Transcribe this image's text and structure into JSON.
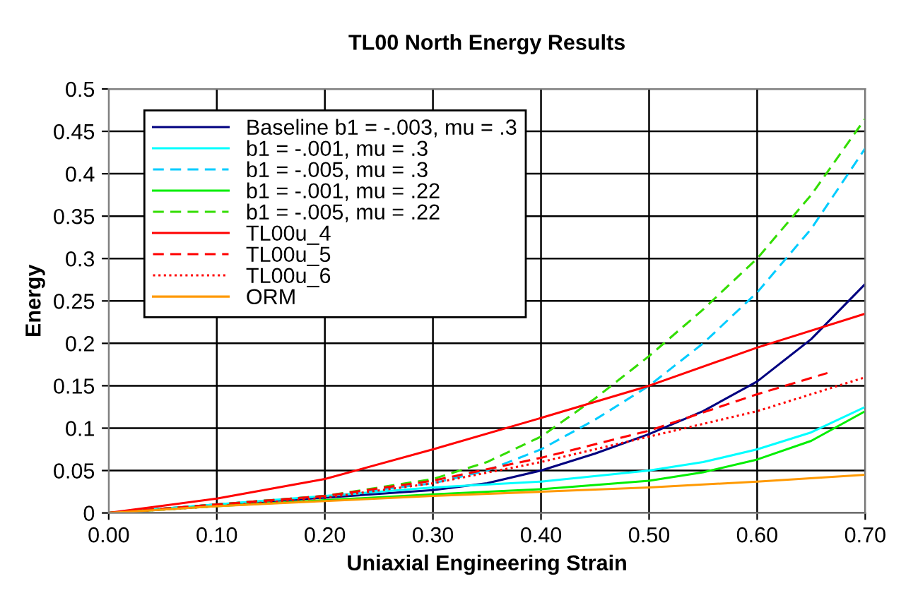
{
  "chart_data": {
    "type": "line",
    "title": "TL00 North Energy Results",
    "xlabel": "Uniaxial Engineering Strain",
    "ylabel": "Energy",
    "xlim": [
      0,
      0.7
    ],
    "ylim": [
      0,
      0.5
    ],
    "xticks": [
      {
        "value": 0,
        "label": "0.00"
      },
      {
        "value": 0.1,
        "label": "0.10"
      },
      {
        "value": 0.2,
        "label": "0.20"
      },
      {
        "value": 0.3,
        "label": "0.30"
      },
      {
        "value": 0.4,
        "label": "0.40"
      },
      {
        "value": 0.5,
        "label": "0.50"
      },
      {
        "value": 0.6,
        "label": "0.60"
      },
      {
        "value": 0.7,
        "label": "0.70"
      }
    ],
    "yticks": [
      0,
      0.05,
      0.1,
      0.15,
      0.2,
      0.25,
      0.3,
      0.35,
      0.4,
      0.45,
      {
        "value": 0.5,
        "label": "0.5"
      }
    ],
    "grid": true,
    "legend": "top left",
    "marker": "none",
    "series": [
      {
        "name": "Baseline b1 = -.003, mu = .3",
        "color": "#000080",
        "line_style": "solid",
        "x": [
          0,
          0.1,
          0.2,
          0.3,
          0.35,
          0.4,
          0.45,
          0.5,
          0.55,
          0.6,
          0.65,
          0.7
        ],
        "values": [
          0,
          0.01,
          0.018,
          0.027,
          0.035,
          0.05,
          0.07,
          0.093,
          0.12,
          0.155,
          0.205,
          0.27
        ]
      },
      {
        "name": "b1 = -.001, mu = .3",
        "color": "#00ffff",
        "line_style": "solid",
        "x": [
          0,
          0.1,
          0.2,
          0.3,
          0.4,
          0.5,
          0.55,
          0.6,
          0.65,
          0.7
        ],
        "values": [
          0,
          0.01,
          0.02,
          0.03,
          0.037,
          0.05,
          0.06,
          0.075,
          0.095,
          0.125
        ]
      },
      {
        "name": "b1 = -.005, mu = .3",
        "color": "#00ccff",
        "line_style": "dashed",
        "x": [
          0,
          0.1,
          0.2,
          0.3,
          0.35,
          0.4,
          0.45,
          0.5,
          0.55,
          0.6,
          0.65,
          0.7
        ],
        "values": [
          0,
          0.01,
          0.02,
          0.035,
          0.05,
          0.075,
          0.11,
          0.15,
          0.2,
          0.26,
          0.335,
          0.43
        ]
      },
      {
        "name": "b1 = -.001, mu = .22",
        "color": "#00ee00",
        "line_style": "solid",
        "x": [
          0,
          0.1,
          0.2,
          0.3,
          0.4,
          0.5,
          0.55,
          0.6,
          0.65,
          0.7
        ],
        "values": [
          0,
          0.008,
          0.015,
          0.022,
          0.028,
          0.038,
          0.048,
          0.063,
          0.085,
          0.12
        ]
      },
      {
        "name": "b1 = -.005, mu = .22",
        "color": "#33dd00",
        "line_style": "dashed",
        "x": [
          0,
          0.1,
          0.2,
          0.3,
          0.35,
          0.4,
          0.45,
          0.5,
          0.55,
          0.6,
          0.65,
          0.7
        ],
        "values": [
          0,
          0.01,
          0.02,
          0.04,
          0.06,
          0.09,
          0.135,
          0.185,
          0.24,
          0.3,
          0.375,
          0.465
        ]
      },
      {
        "name": "TL00u_4",
        "color": "#ff0000",
        "line_style": "solid",
        "x": [
          0,
          0.1,
          0.2,
          0.3,
          0.4,
          0.5,
          0.6,
          0.7
        ],
        "values": [
          0,
          0.017,
          0.04,
          0.075,
          0.112,
          0.15,
          0.195,
          0.235
        ]
      },
      {
        "name": "TL00u_5",
        "color": "#ff0000",
        "line_style": "dashed",
        "x": [
          0,
          0.1,
          0.2,
          0.3,
          0.4,
          0.5,
          0.6,
          0.665
        ],
        "values": [
          0,
          0.01,
          0.02,
          0.038,
          0.065,
          0.097,
          0.14,
          0.165
        ]
      },
      {
        "name": "TL00u_6",
        "color": "#ff0000",
        "line_style": "dotted",
        "x": [
          0,
          0.1,
          0.2,
          0.3,
          0.4,
          0.5,
          0.6,
          0.7
        ],
        "values": [
          0,
          0.008,
          0.018,
          0.035,
          0.06,
          0.09,
          0.12,
          0.16
        ]
      },
      {
        "name": "ORM",
        "color": "#ff9900",
        "line_style": "solid",
        "x": [
          0,
          0.1,
          0.2,
          0.3,
          0.4,
          0.5,
          0.6,
          0.7
        ],
        "values": [
          0,
          0.008,
          0.014,
          0.02,
          0.025,
          0.03,
          0.037,
          0.045
        ]
      }
    ]
  }
}
